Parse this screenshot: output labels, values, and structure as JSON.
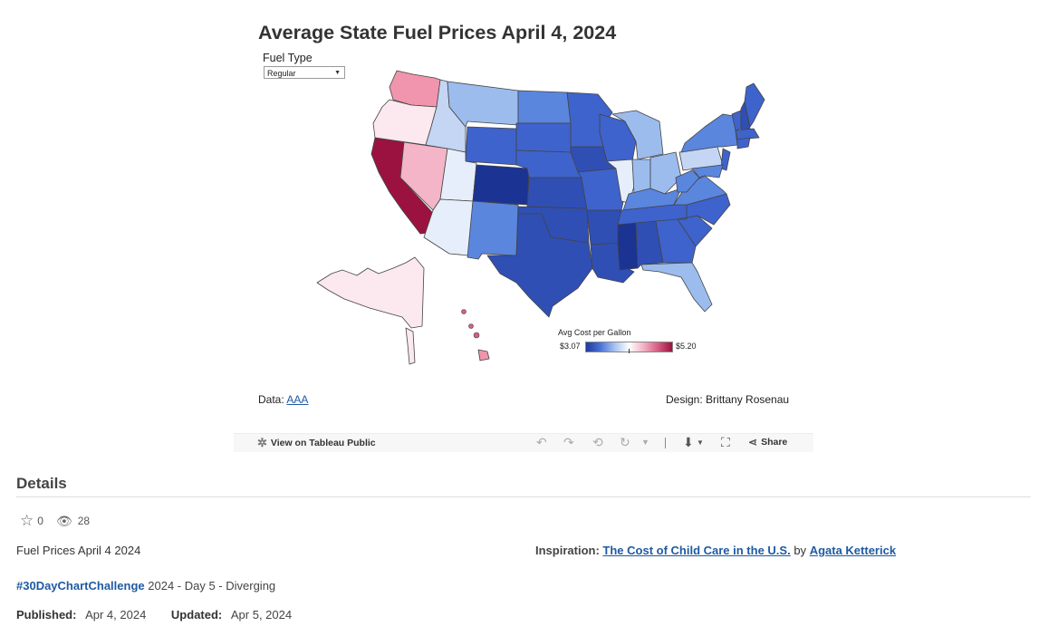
{
  "viz": {
    "title": "Average State Fuel Prices April 4, 2024",
    "filter_label": "Fuel Type",
    "filter_value": "Regular",
    "legend": {
      "title": "Avg Cost per Gallon",
      "min": "$3.07",
      "max": "$5.20"
    },
    "data_prefix": "Data:",
    "data_link": "AAA",
    "design_credit": "Design: Brittany Rosenau"
  },
  "colors": {
    "darkest_blue": "#1b3393",
    "dark_blue": "#2f4fb5",
    "medium_blue": "#3f63cc",
    "mid_blue": "#5a86de",
    "light_blue": "#9cbcee",
    "pale_blue": "#c4d6f4",
    "very_pale_blue": "#e6eefb",
    "pale_pink": "#fce8ef",
    "light_pink": "#f4b5c8",
    "pink": "#f095ad",
    "dark_red": "#9b1240"
  },
  "toolbar": {
    "view_label": "View on Tableau Public",
    "share_label": "Share"
  },
  "details": {
    "heading": "Details",
    "favorites": "0",
    "views": "28",
    "description": "Fuel Prices April 4 2024",
    "inspiration_label": "Inspiration:",
    "inspiration_title": "The Cost of Child Care in the U.S.",
    "inspiration_by": "by",
    "inspiration_author": "Agata Ketterick",
    "hashtag": "#30DayChartChallenge",
    "hashtag_rest": "2024 - Day 5 - Diverging",
    "published_label": "Published:",
    "published_date": "Apr 4, 2024",
    "updated_label": "Updated:",
    "updated_date": "Apr 5, 2024"
  }
}
